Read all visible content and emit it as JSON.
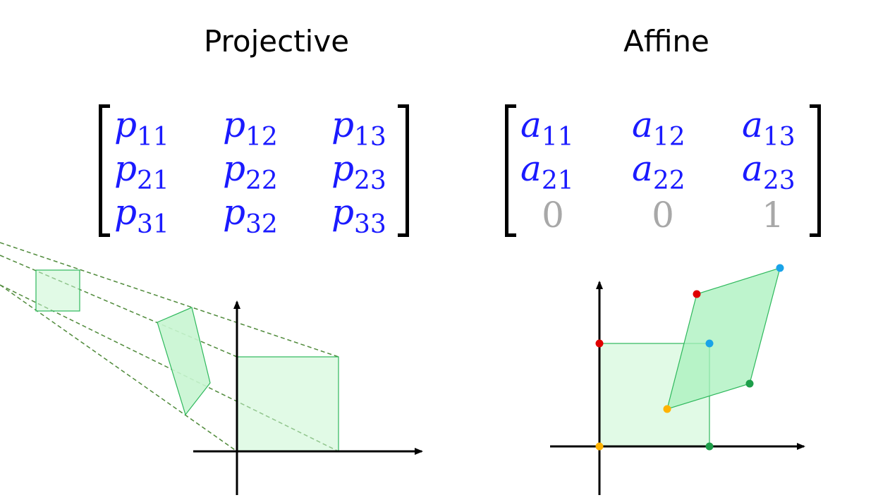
{
  "projective": {
    "title": "Projective",
    "matrix": [
      [
        {
          "base": "p",
          "sub": "11"
        },
        {
          "base": "p",
          "sub": "12"
        },
        {
          "base": "p",
          "sub": "13"
        }
      ],
      [
        {
          "base": "p",
          "sub": "21"
        },
        {
          "base": "p",
          "sub": "22"
        },
        {
          "base": "p",
          "sub": "23"
        }
      ],
      [
        {
          "base": "p",
          "sub": "31"
        },
        {
          "base": "p",
          "sub": "32"
        },
        {
          "base": "p",
          "sub": "33"
        }
      ]
    ]
  },
  "affine": {
    "title": "Affine",
    "matrix": [
      [
        {
          "base": "a",
          "sub": "11"
        },
        {
          "base": "a",
          "sub": "12"
        },
        {
          "base": "a",
          "sub": "13"
        }
      ],
      [
        {
          "base": "a",
          "sub": "21"
        },
        {
          "base": "a",
          "sub": "22"
        },
        {
          "base": "a",
          "sub": "23"
        }
      ],
      [
        {
          "value": "0"
        },
        {
          "value": "0"
        },
        {
          "value": "1"
        }
      ]
    ]
  },
  "colors": {
    "entry": "#1a1aff",
    "constant": "#a8a8a8",
    "shape_fill": "#c8f5d2",
    "shape_stroke": "#2eb85c",
    "projection_line": "#4f8a3a",
    "corner_red": "#e00000",
    "corner_blue": "#1aa3e8",
    "corner_green": "#1e9e4a",
    "corner_yellow": "#ffb300"
  }
}
